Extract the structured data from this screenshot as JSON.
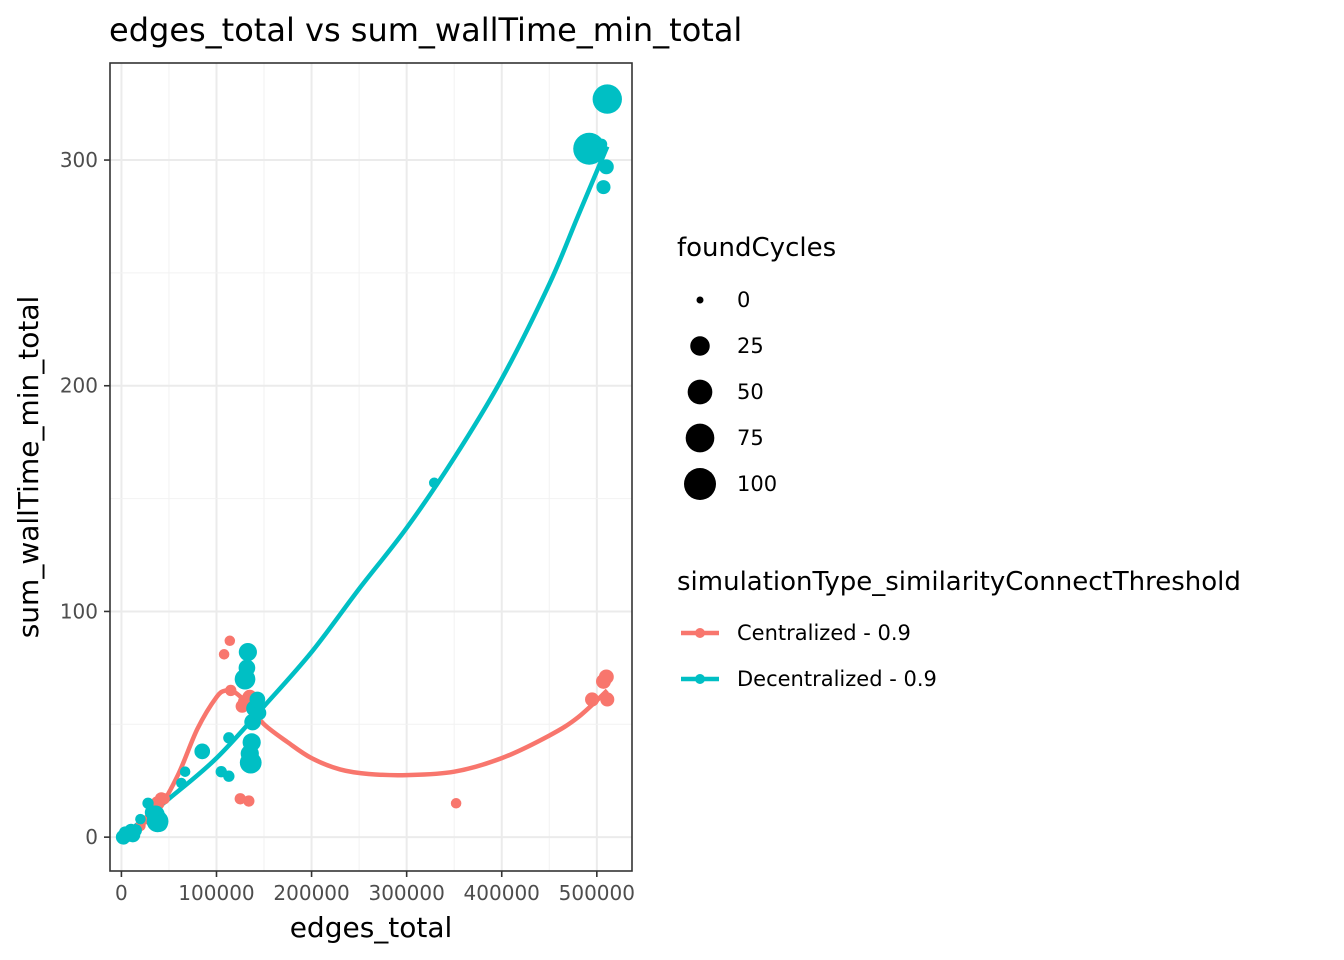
{
  "chart_data": {
    "type": "scatter",
    "title": "edges_total  vs  sum_wallTime_min_total",
    "xlabel": "edges_total",
    "ylabel": "sum_wallTime_min_total",
    "xlim": [
      -12000,
      537000
    ],
    "ylim": [
      -15,
      343
    ],
    "x_ticks": [
      0,
      100000,
      200000,
      300000,
      400000,
      500000
    ],
    "x_tick_labels": [
      "0",
      "100000",
      "200000",
      "300000",
      "400000",
      "500000"
    ],
    "y_ticks": [
      0,
      100,
      200,
      300
    ],
    "y_tick_labels": [
      "0",
      "100",
      "200",
      "300"
    ],
    "grid": true,
    "size_legend": {
      "title": "foundCycles",
      "items": [
        {
          "label": "0",
          "value": 0
        },
        {
          "label": "25",
          "value": 25
        },
        {
          "label": "50",
          "value": 50
        },
        {
          "label": "75",
          "value": 75
        },
        {
          "label": "100",
          "value": 100
        }
      ]
    },
    "color_legend": {
      "title": "simulationType_similarityConnectThreshold",
      "placement": "right"
    },
    "series": [
      {
        "name": "Centralized - 0.9",
        "color": "#F8766D",
        "points": [
          [
            2000,
            0,
            0
          ],
          [
            5000,
            1,
            2
          ],
          [
            8000,
            2,
            3
          ],
          [
            12000,
            2,
            3
          ],
          [
            20000,
            5,
            2
          ],
          [
            30000,
            8,
            5
          ],
          [
            38000,
            15,
            8
          ],
          [
            42000,
            17,
            6
          ],
          [
            45000,
            17,
            3
          ],
          [
            108000,
            81,
            2
          ],
          [
            114000,
            87,
            2
          ],
          [
            115000,
            65,
            3
          ],
          [
            125000,
            17,
            3
          ],
          [
            134000,
            16,
            3
          ],
          [
            127000,
            58,
            6
          ],
          [
            130000,
            60,
            8
          ],
          [
            135000,
            62,
            10
          ],
          [
            140000,
            60,
            8
          ],
          [
            352000,
            15,
            2
          ],
          [
            495000,
            61,
            8
          ],
          [
            507000,
            69,
            10
          ],
          [
            510000,
            71,
            10
          ],
          [
            511000,
            61,
            8
          ]
        ],
        "fit": [
          [
            0,
            0
          ],
          [
            20000,
            5
          ],
          [
            40000,
            13
          ],
          [
            60000,
            28
          ],
          [
            80000,
            48
          ],
          [
            100000,
            62
          ],
          [
            110000,
            65
          ],
          [
            120000,
            64
          ],
          [
            135000,
            58
          ],
          [
            150000,
            50
          ],
          [
            175000,
            42
          ],
          [
            200000,
            35
          ],
          [
            230000,
            30
          ],
          [
            260000,
            28
          ],
          [
            300000,
            27.5
          ],
          [
            350000,
            29
          ],
          [
            400000,
            35
          ],
          [
            450000,
            45
          ],
          [
            480000,
            53
          ],
          [
            511000,
            65
          ]
        ]
      },
      {
        "name": "Decentralized - 0.9",
        "color": "#00BFC4",
        "points": [
          [
            2000,
            0,
            10
          ],
          [
            4000,
            2,
            5
          ],
          [
            7000,
            1,
            8
          ],
          [
            10000,
            3,
            6
          ],
          [
            12000,
            1,
            10
          ],
          [
            15000,
            3,
            5
          ],
          [
            20000,
            8,
            2
          ],
          [
            28000,
            15,
            3
          ],
          [
            32000,
            11,
            8
          ],
          [
            36000,
            10,
            20
          ],
          [
            38000,
            7,
            35
          ],
          [
            40000,
            6,
            15
          ],
          [
            63000,
            24,
            2
          ],
          [
            67000,
            29,
            2
          ],
          [
            85000,
            38,
            12
          ],
          [
            105000,
            29,
            3
          ],
          [
            113000,
            27,
            3
          ],
          [
            113000,
            44,
            3
          ],
          [
            130000,
            70,
            30
          ],
          [
            132000,
            75,
            15
          ],
          [
            133000,
            82,
            20
          ],
          [
            135000,
            37,
            20
          ],
          [
            136000,
            33,
            35
          ],
          [
            137000,
            42,
            20
          ],
          [
            138000,
            51,
            15
          ],
          [
            140000,
            57,
            15
          ],
          [
            143000,
            61,
            12
          ],
          [
            145000,
            55,
            8
          ],
          [
            329000,
            157,
            2
          ],
          [
            492000,
            305,
            100
          ],
          [
            505000,
            307,
            3
          ],
          [
            507000,
            288,
            8
          ],
          [
            510000,
            297,
            10
          ],
          [
            511000,
            327,
            80
          ]
        ],
        "fit": [
          [
            0,
            0
          ],
          [
            50000,
            17
          ],
          [
            100000,
            35
          ],
          [
            150000,
            58
          ],
          [
            200000,
            82
          ],
          [
            250000,
            110
          ],
          [
            300000,
            137
          ],
          [
            350000,
            168
          ],
          [
            400000,
            203
          ],
          [
            450000,
            245
          ],
          [
            480000,
            275
          ],
          [
            511000,
            306
          ]
        ]
      }
    ]
  }
}
